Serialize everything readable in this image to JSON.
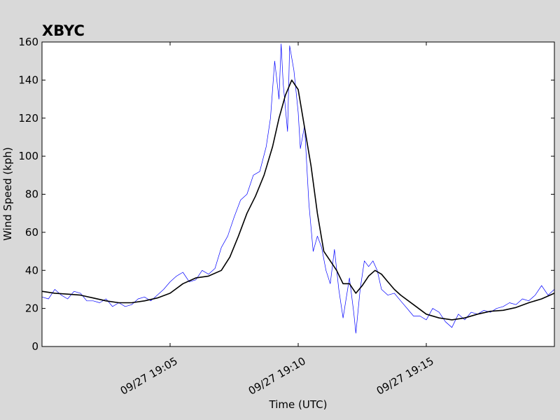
{
  "chart_data": {
    "type": "line",
    "title": "XBYC",
    "xlabel": "Time (UTC)",
    "ylabel": "Wind Speed (kph)",
    "x_range": [
      "09/27 19:00:00",
      "09/27 19:20:00"
    ],
    "ylim": [
      0,
      160
    ],
    "y_ticks": [
      0,
      20,
      40,
      60,
      80,
      100,
      120,
      140,
      160
    ],
    "x_ticks": [
      {
        "time": "09/27 19:05",
        "label": "09/27 19:05"
      },
      {
        "time": "09/27 19:10",
        "label": "09/27 19:10"
      },
      {
        "time": "09/27 19:15",
        "label": "09/27 19:15"
      }
    ],
    "grid": false,
    "series": [
      {
        "color": "#0000ff",
        "style": "thin",
        "points": [
          [
            "19:00:00",
            26
          ],
          [
            "19:00:15",
            25
          ],
          [
            "19:00:30",
            30
          ],
          [
            "19:00:45",
            27
          ],
          [
            "19:01:00",
            25
          ],
          [
            "19:01:15",
            29
          ],
          [
            "19:01:30",
            28
          ],
          [
            "19:01:45",
            24
          ],
          [
            "19:02:00",
            24
          ],
          [
            "19:02:15",
            23
          ],
          [
            "19:02:30",
            25
          ],
          [
            "19:02:45",
            21
          ],
          [
            "19:03:00",
            23
          ],
          [
            "19:03:15",
            21
          ],
          [
            "19:03:30",
            22
          ],
          [
            "19:03:45",
            25
          ],
          [
            "19:04:00",
            26
          ],
          [
            "19:04:15",
            24
          ],
          [
            "19:04:30",
            27
          ],
          [
            "19:04:45",
            30
          ],
          [
            "19:05:00",
            34
          ],
          [
            "19:05:15",
            37
          ],
          [
            "19:05:30",
            39
          ],
          [
            "19:05:45",
            34
          ],
          [
            "19:06:00",
            35
          ],
          [
            "19:06:15",
            40
          ],
          [
            "19:06:30",
            38
          ],
          [
            "19:06:45",
            41
          ],
          [
            "19:07:00",
            52
          ],
          [
            "19:07:15",
            58
          ],
          [
            "19:07:30",
            68
          ],
          [
            "19:07:45",
            77
          ],
          [
            "19:08:00",
            80
          ],
          [
            "19:08:15",
            90
          ],
          [
            "19:08:30",
            92
          ],
          [
            "19:08:45",
            105
          ],
          [
            "19:08:55",
            120
          ],
          [
            "19:09:05",
            150
          ],
          [
            "19:09:15",
            130
          ],
          [
            "19:09:20",
            159
          ],
          [
            "19:09:25",
            138
          ],
          [
            "19:09:35",
            113
          ],
          [
            "19:09:40",
            158
          ],
          [
            "19:09:50",
            145
          ],
          [
            "19:10:00",
            123
          ],
          [
            "19:10:05",
            104
          ],
          [
            "19:10:15",
            116
          ],
          [
            "19:10:25",
            75
          ],
          [
            "19:10:35",
            50
          ],
          [
            "19:10:45",
            58
          ],
          [
            "19:10:55",
            52
          ],
          [
            "19:11:05",
            40
          ],
          [
            "19:11:15",
            33
          ],
          [
            "19:11:25",
            51
          ],
          [
            "19:11:35",
            30
          ],
          [
            "19:11:45",
            15
          ],
          [
            "19:12:00",
            36
          ],
          [
            "19:12:10",
            18
          ],
          [
            "19:12:15",
            7
          ],
          [
            "19:12:25",
            30
          ],
          [
            "19:12:35",
            45
          ],
          [
            "19:12:45",
            42
          ],
          [
            "19:12:55",
            45
          ],
          [
            "19:13:05",
            40
          ],
          [
            "19:13:15",
            30
          ],
          [
            "19:13:30",
            27
          ],
          [
            "19:13:45",
            28
          ],
          [
            "19:14:00",
            24
          ],
          [
            "19:14:15",
            20
          ],
          [
            "19:14:30",
            16
          ],
          [
            "19:14:45",
            16
          ],
          [
            "19:15:00",
            14
          ],
          [
            "19:15:15",
            20
          ],
          [
            "19:15:30",
            18
          ],
          [
            "19:15:45",
            13
          ],
          [
            "19:16:00",
            10
          ],
          [
            "19:16:15",
            17
          ],
          [
            "19:16:30",
            14
          ],
          [
            "19:16:45",
            18
          ],
          [
            "19:17:00",
            17
          ],
          [
            "19:17:15",
            19
          ],
          [
            "19:17:30",
            18
          ],
          [
            "19:17:45",
            20
          ],
          [
            "19:18:00",
            21
          ],
          [
            "19:18:15",
            23
          ],
          [
            "19:18:30",
            22
          ],
          [
            "19:18:45",
            25
          ],
          [
            "19:19:00",
            24
          ],
          [
            "19:19:15",
            27
          ],
          [
            "19:19:30",
            32
          ],
          [
            "19:19:45",
            27
          ],
          [
            "19:20:00",
            30
          ]
        ]
      },
      {
        "color": "#000000",
        "style": "thick",
        "points": [
          [
            "19:00:00",
            29
          ],
          [
            "19:00:30",
            28
          ],
          [
            "19:01:00",
            27.5
          ],
          [
            "19:01:30",
            27
          ],
          [
            "19:02:00",
            25.5
          ],
          [
            "19:02:30",
            24
          ],
          [
            "19:03:00",
            23
          ],
          [
            "19:03:30",
            23
          ],
          [
            "19:04:00",
            24
          ],
          [
            "19:04:30",
            25.5
          ],
          [
            "19:05:00",
            28
          ],
          [
            "19:05:30",
            33
          ],
          [
            "19:06:00",
            36
          ],
          [
            "19:06:30",
            37
          ],
          [
            "19:07:00",
            40
          ],
          [
            "19:07:20",
            47
          ],
          [
            "19:07:40",
            58
          ],
          [
            "19:08:00",
            70
          ],
          [
            "19:08:20",
            79
          ],
          [
            "19:08:40",
            90
          ],
          [
            "19:09:00",
            105
          ],
          [
            "19:09:15",
            120
          ],
          [
            "19:09:30",
            132
          ],
          [
            "19:09:45",
            140
          ],
          [
            "19:10:00",
            135
          ],
          [
            "19:10:15",
            115
          ],
          [
            "19:10:30",
            95
          ],
          [
            "19:10:45",
            70
          ],
          [
            "19:11:00",
            50
          ],
          [
            "19:11:15",
            45
          ],
          [
            "19:11:30",
            40
          ],
          [
            "19:11:45",
            33
          ],
          [
            "19:12:00",
            33
          ],
          [
            "19:12:15",
            28
          ],
          [
            "19:12:30",
            32
          ],
          [
            "19:12:45",
            37
          ],
          [
            "19:13:00",
            40
          ],
          [
            "19:13:15",
            38
          ],
          [
            "19:13:30",
            34
          ],
          [
            "19:13:45",
            30
          ],
          [
            "19:14:00",
            27
          ],
          [
            "19:14:30",
            22
          ],
          [
            "19:15:00",
            17
          ],
          [
            "19:15:30",
            15
          ],
          [
            "19:16:00",
            14
          ],
          [
            "19:16:30",
            15
          ],
          [
            "19:17:00",
            17
          ],
          [
            "19:17:30",
            18.5
          ],
          [
            "19:18:00",
            19
          ],
          [
            "19:18:30",
            20.5
          ],
          [
            "19:19:00",
            23
          ],
          [
            "19:19:30",
            25
          ],
          [
            "19:20:00",
            28
          ]
        ]
      }
    ]
  }
}
